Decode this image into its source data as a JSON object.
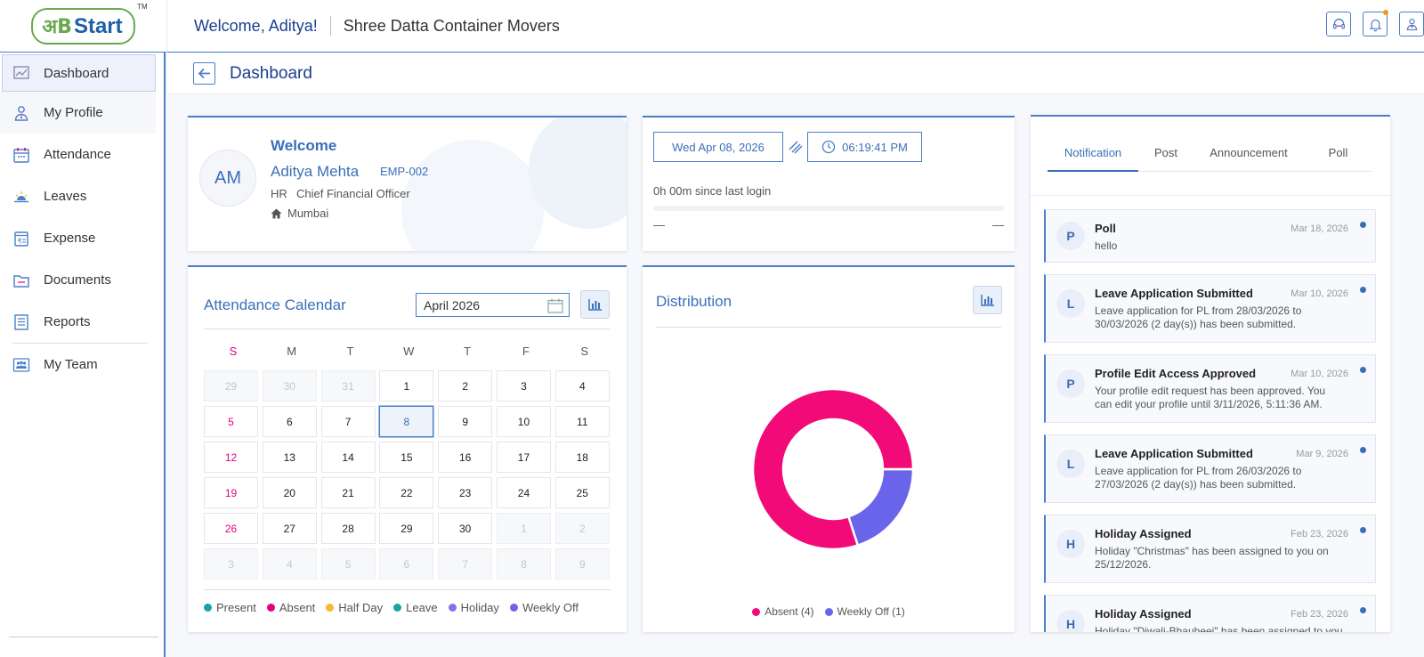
{
  "header": {
    "logo_glyph": "अB",
    "logo_text": "Start",
    "logo_tm": "TM",
    "welcome": "Welcome, Aditya!",
    "company": "Shree Datta Container Movers",
    "actions": [
      {
        "name": "support-button",
        "icon": "headset-icon"
      },
      {
        "name": "notifications-button",
        "icon": "bell-icon"
      },
      {
        "name": "user-menu-button",
        "icon": "user-icon"
      }
    ]
  },
  "sidebar": {
    "items": [
      {
        "label": "Dashboard",
        "icon": "dashboard-icon"
      },
      {
        "label": "My Profile",
        "icon": "profile-icon"
      },
      {
        "label": "Attendance",
        "icon": "calendar-icon"
      },
      {
        "label": "Leaves",
        "icon": "sun-icon"
      },
      {
        "label": "Expense",
        "icon": "rupee-receipt-icon"
      },
      {
        "label": "Documents",
        "icon": "folder-icon"
      },
      {
        "label": "Reports",
        "icon": "report-icon"
      },
      {
        "label": "My Team",
        "icon": "team-icon"
      }
    ]
  },
  "page": {
    "title": "Dashboard"
  },
  "profile": {
    "welcome": "Welcome",
    "initials": "AM",
    "name": "Aditya Mehta",
    "emp_id": "EMP-002",
    "department": "HR",
    "designation": "Chief Financial Officer",
    "location": "Mumbai"
  },
  "clock": {
    "date": "Wed Apr 08, 2026",
    "time": "06:19:41 PM",
    "since_login": "0h 00m since last login",
    "left_dash": "—",
    "right_dash": "—"
  },
  "calendar": {
    "title": "Attendance Calendar",
    "month": "April 2026",
    "weekdays": [
      "S",
      "M",
      "T",
      "W",
      "T",
      "F",
      "S"
    ],
    "days": [
      {
        "d": "29",
        "t": "other"
      },
      {
        "d": "30",
        "t": "other"
      },
      {
        "d": "31",
        "t": "other"
      },
      {
        "d": "1",
        "t": ""
      },
      {
        "d": "2",
        "t": ""
      },
      {
        "d": "3",
        "t": ""
      },
      {
        "d": "4",
        "t": ""
      },
      {
        "d": "5",
        "t": "sun"
      },
      {
        "d": "6",
        "t": ""
      },
      {
        "d": "7",
        "t": ""
      },
      {
        "d": "8",
        "t": "today"
      },
      {
        "d": "9",
        "t": ""
      },
      {
        "d": "10",
        "t": ""
      },
      {
        "d": "11",
        "t": ""
      },
      {
        "d": "12",
        "t": "sun"
      },
      {
        "d": "13",
        "t": ""
      },
      {
        "d": "14",
        "t": ""
      },
      {
        "d": "15",
        "t": ""
      },
      {
        "d": "16",
        "t": ""
      },
      {
        "d": "17",
        "t": ""
      },
      {
        "d": "18",
        "t": ""
      },
      {
        "d": "19",
        "t": "sun"
      },
      {
        "d": "20",
        "t": ""
      },
      {
        "d": "21",
        "t": ""
      },
      {
        "d": "22",
        "t": ""
      },
      {
        "d": "23",
        "t": ""
      },
      {
        "d": "24",
        "t": ""
      },
      {
        "d": "25",
        "t": ""
      },
      {
        "d": "26",
        "t": "sun"
      },
      {
        "d": "27",
        "t": ""
      },
      {
        "d": "28",
        "t": ""
      },
      {
        "d": "29",
        "t": ""
      },
      {
        "d": "30",
        "t": ""
      },
      {
        "d": "1",
        "t": "other"
      },
      {
        "d": "2",
        "t": "other"
      },
      {
        "d": "3",
        "t": "other"
      },
      {
        "d": "4",
        "t": "other"
      },
      {
        "d": "5",
        "t": "other"
      },
      {
        "d": "6",
        "t": "other"
      },
      {
        "d": "7",
        "t": "other"
      },
      {
        "d": "8",
        "t": "other"
      },
      {
        "d": "9",
        "t": "other"
      }
    ],
    "legend": [
      {
        "label": "Present",
        "color": "#1aa3a3"
      },
      {
        "label": "Absent",
        "color": "#e6007e"
      },
      {
        "label": "Half Day",
        "color": "#f5b82e"
      },
      {
        "label": "Leave",
        "color": "#1aa3a3"
      },
      {
        "label": "Holiday",
        "color": "#8e6ee8"
      },
      {
        "label": "Weekly Off",
        "color": "#6a64ea"
      }
    ]
  },
  "distribution": {
    "title": "Distribution"
  },
  "chart_data": {
    "type": "pie",
    "donut": true,
    "categories": [
      "Absent",
      "Weekly Off"
    ],
    "values": [
      4,
      1
    ],
    "colors": [
      "#f20b78",
      "#6a64ea"
    ],
    "legend_labels": [
      "Absent (4)",
      "Weekly Off (1)"
    ],
    "legend_position": "bottom"
  },
  "notifications": {
    "tabs": [
      "Notification",
      "Post",
      "Announcement",
      "Poll"
    ],
    "items": [
      {
        "avatar": "P",
        "title": "Poll",
        "date": "Mar 18, 2026",
        "body": "hello"
      },
      {
        "avatar": "L",
        "title": "Leave Application Submitted",
        "date": "Mar 10, 2026",
        "body": "Leave application for PL from 28/03/2026 to 30/03/2026 (2 day(s)) has been submitted."
      },
      {
        "avatar": "P",
        "title": "Profile Edit Access Approved",
        "date": "Mar 10, 2026",
        "body": "Your profile edit request has been approved. You can edit your profile until 3/11/2026, 5:11:36 AM."
      },
      {
        "avatar": "L",
        "title": "Leave Application Submitted",
        "date": "Mar 9, 2026",
        "body": "Leave application for PL from 26/03/2026 to 27/03/2026 (2 day(s)) has been submitted."
      },
      {
        "avatar": "H",
        "title": "Holiday Assigned",
        "date": "Feb 23, 2026",
        "body": "Holiday \"Christmas\" has been assigned to you on 25/12/2026."
      },
      {
        "avatar": "H",
        "title": "Holiday Assigned",
        "date": "Feb 23, 2026",
        "body": "Holiday \"Diwali-Bhaubeej\" has been assigned to you"
      }
    ]
  }
}
